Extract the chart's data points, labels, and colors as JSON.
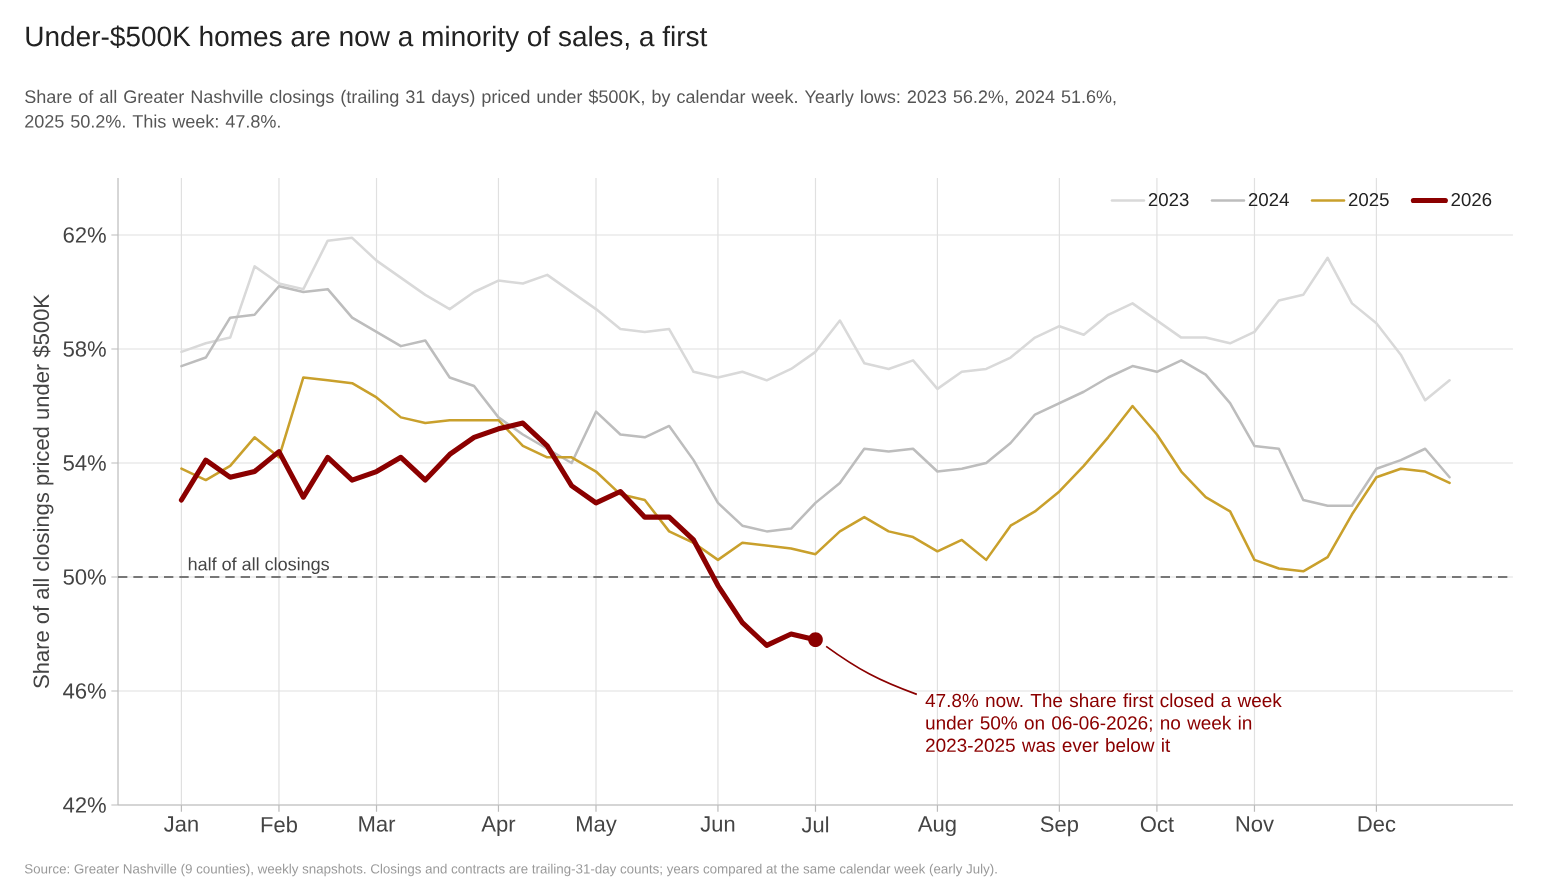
{
  "chart_data": {
    "type": "line",
    "title": "Under-$500K homes are now a minority of sales, a first",
    "subtitle": "Share of all Greater Nashville closings (trailing 31 days) priced under $500K, by calendar week. Yearly lows: 2023 56.2%, 2024 51.6%, 2025 50.2%. This week: 47.8%.",
    "ylabel": "Share of all closings priced under $500K",
    "categories": [
      "Jan",
      null,
      null,
      null,
      "Feb",
      null,
      null,
      null,
      "Mar",
      null,
      null,
      null,
      null,
      "Apr",
      null,
      null,
      null,
      "May",
      null,
      null,
      null,
      null,
      "Jun",
      null,
      null,
      null,
      "Jul",
      null,
      null,
      null,
      null,
      "Aug",
      null,
      null,
      null,
      null,
      "Sep",
      null,
      null,
      null,
      "Oct",
      null,
      null,
      null,
      "Nov",
      null,
      null,
      null,
      null,
      "Dec",
      null,
      null,
      null
    ],
    "series": [
      {
        "name": "2023",
        "color": "#d9d9d9",
        "values": [
          57.9,
          58.2,
          58.4,
          60.9,
          60.3,
          60.1,
          61.8,
          61.9,
          61.1,
          60.5,
          59.9,
          59.4,
          60.0,
          60.4,
          60.3,
          60.6,
          60.0,
          59.4,
          58.7,
          58.6,
          58.7,
          57.2,
          57.0,
          57.2,
          56.9,
          57.3,
          57.9,
          59.0,
          57.5,
          57.3,
          57.6,
          56.6,
          57.2,
          57.3,
          57.7,
          58.4,
          58.8,
          58.5,
          59.2,
          59.6,
          59.0,
          58.4,
          58.4,
          58.2,
          58.6,
          59.7,
          59.9,
          61.2,
          59.6,
          58.9,
          57.8,
          56.2,
          56.9
        ]
      },
      {
        "name": "2024",
        "color": "#bdbdbd",
        "values": [
          57.4,
          57.7,
          59.1,
          59.2,
          60.2,
          60.0,
          60.1,
          59.1,
          58.6,
          58.1,
          58.3,
          57.0,
          56.7,
          55.6,
          55.0,
          54.5,
          54.0,
          55.8,
          55.0,
          54.9,
          55.3,
          54.1,
          52.6,
          51.8,
          51.6,
          51.7,
          52.6,
          53.3,
          54.5,
          54.4,
          54.5,
          53.7,
          53.8,
          54.0,
          54.7,
          55.7,
          56.1,
          56.5,
          57.0,
          57.4,
          57.2,
          57.6,
          57.1,
          56.1,
          54.6,
          54.5,
          52.7,
          52.5,
          52.5,
          53.8,
          54.1,
          54.5,
          53.5
        ]
      },
      {
        "name": "2025",
        "color": "#c9a02c",
        "values": [
          53.8,
          53.4,
          53.9,
          54.9,
          54.2,
          57.0,
          56.9,
          56.8,
          56.3,
          55.6,
          55.4,
          55.5,
          55.5,
          55.5,
          54.6,
          54.2,
          54.2,
          53.7,
          52.9,
          52.7,
          51.6,
          51.2,
          50.6,
          51.2,
          51.1,
          51.0,
          50.8,
          51.6,
          52.1,
          51.6,
          51.4,
          50.9,
          51.3,
          50.6,
          51.8,
          52.3,
          53.0,
          53.9,
          54.9,
          56.0,
          55.0,
          53.7,
          52.8,
          52.3,
          50.6,
          50.3,
          50.2,
          50.7,
          52.2,
          53.5,
          53.8,
          53.7,
          53.3
        ]
      },
      {
        "name": "2026",
        "color": "#8b0000",
        "values": [
          52.7,
          54.1,
          53.5,
          53.7,
          54.4,
          52.8,
          54.2,
          53.4,
          53.7,
          54.2,
          53.4,
          54.3,
          54.9,
          55.2,
          55.4,
          54.6,
          53.2,
          52.6,
          53.0,
          52.1,
          52.1,
          51.3,
          49.7,
          48.4,
          47.6,
          48.0,
          47.8,
          null,
          null,
          null,
          null,
          null,
          null,
          null,
          null,
          null,
          null,
          null,
          null,
          null,
          null,
          null,
          null,
          null,
          null,
          null,
          null,
          null,
          null,
          null,
          null,
          null,
          null
        ]
      }
    ],
    "ylim": [
      42,
      64
    ],
    "yticks": [
      {
        "value": 42,
        "label": "42%"
      },
      {
        "value": 46,
        "label": "46%"
      },
      {
        "value": 50,
        "label": "50%"
      },
      {
        "value": 54,
        "label": "54%"
      },
      {
        "value": 58,
        "label": "58%"
      },
      {
        "value": 62,
        "label": "62%"
      }
    ],
    "ref_lines": [
      {
        "axis": "y",
        "value": 50,
        "label": "half of all closings",
        "color": "#777777",
        "line_style": "dashed"
      }
    ],
    "annotations": [
      "47.8% now. The share first closed a week under 50% on 06-06-2026; no week in 2023-2025 was ever below it",
      "Source: Greater Nashville (9 counties), weekly snapshots. Closings and contracts are trailing-31-day counts; years compared at the same calendar week (early July)."
    ],
    "grid": true,
    "legend": "top right",
    "marker": "none",
    "line_style": "solid"
  }
}
